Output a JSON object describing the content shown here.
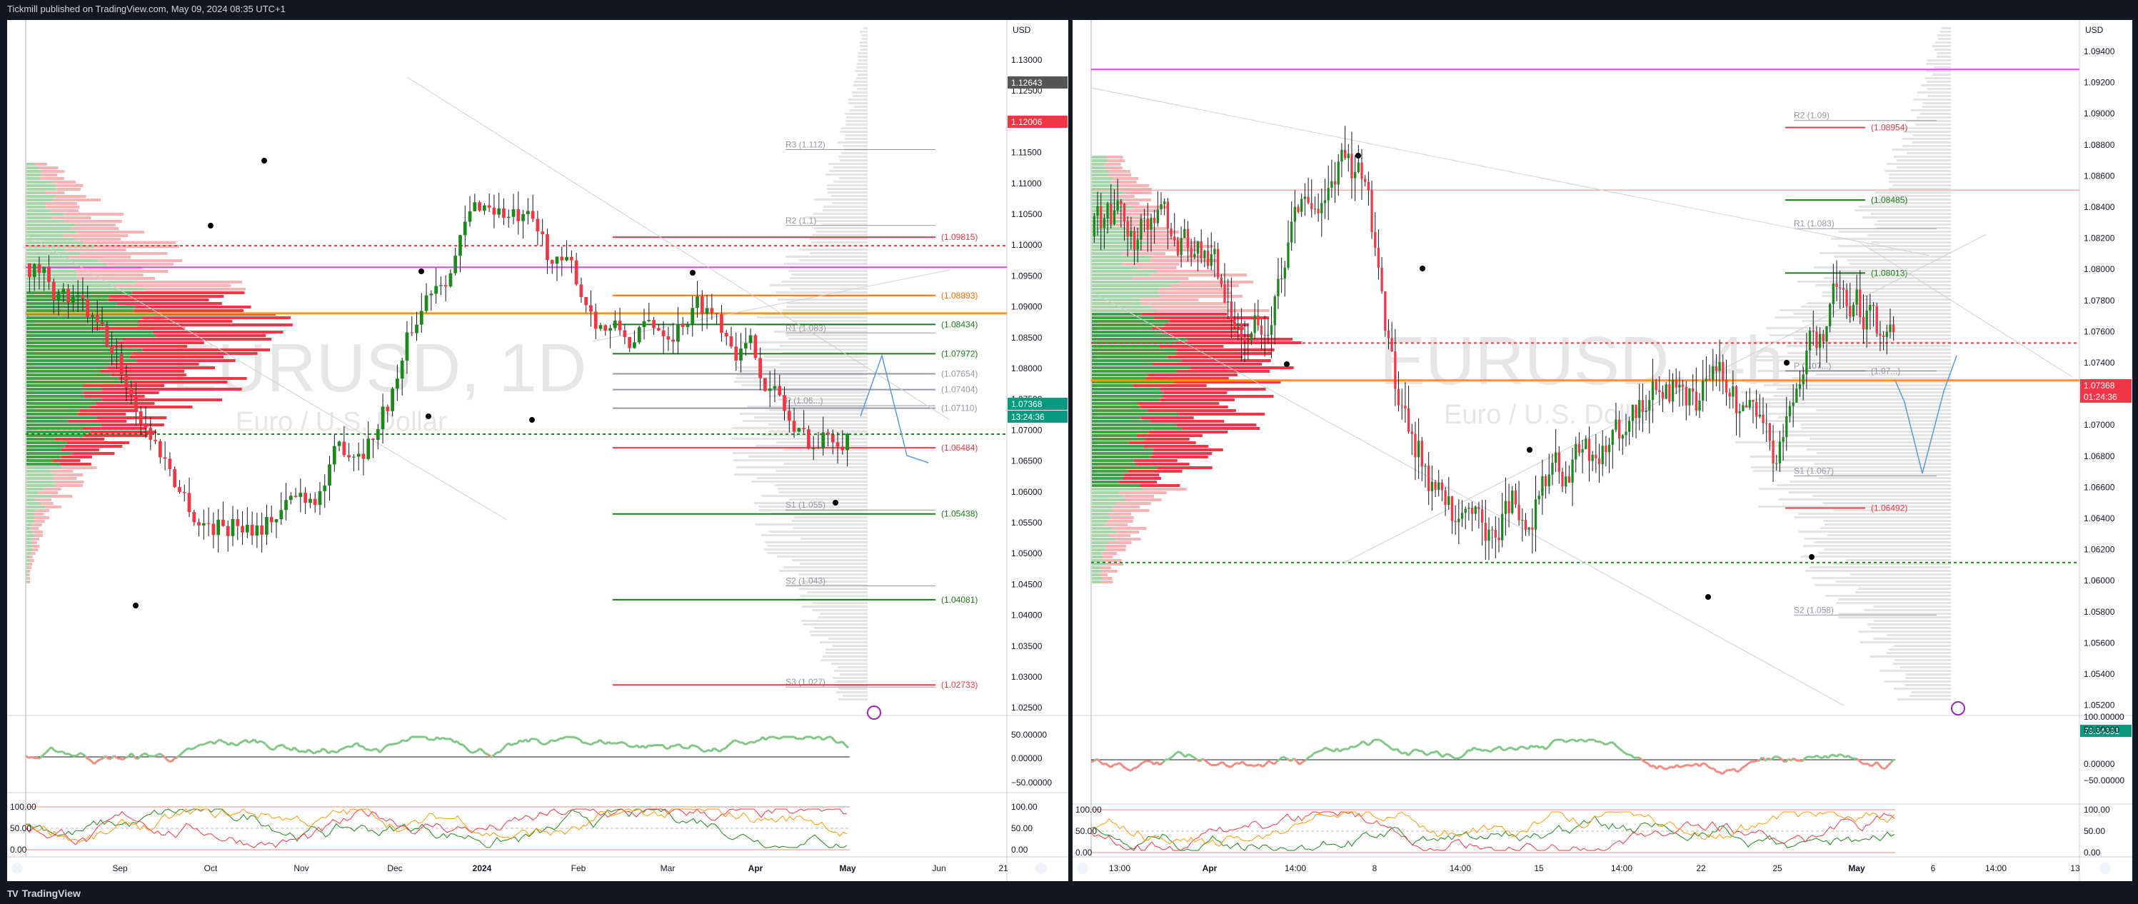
{
  "header": {
    "published": "Tickmill published on TradingView.com, May 09, 2024 08:35 UTC+1"
  },
  "footer": {
    "brand": "TradingView",
    "logo": "TV"
  },
  "left_chart": {
    "symbol_watermark": "EURUSD, 1D",
    "description_watermark": "Euro / U.S. Dollar",
    "currency": "USD",
    "price_axis": [
      "1.13000",
      "1.12500",
      "1.12000",
      "1.11500",
      "1.11000",
      "1.10500",
      "1.10000",
      "1.09500",
      "1.09000",
      "1.08500",
      "1.08000",
      "1.07500",
      "1.07000",
      "1.06500",
      "1.06000",
      "1.05500",
      "1.05000",
      "1.04500",
      "1.04000",
      "1.03500",
      "1.03000",
      "1.02500"
    ],
    "price_tags": [
      {
        "text": "1.12643",
        "bg": "#555555"
      },
      {
        "text": "1.12006",
        "bg": "#f23645"
      },
      {
        "text": "1.07368",
        "bg": "#089981"
      },
      {
        "text": "13:24:36",
        "bg": "#089981"
      }
    ],
    "time_axis": [
      "Sep",
      "Oct",
      "Nov",
      "Dec",
      "2024",
      "Feb",
      "Mar",
      "Apr",
      "May",
      "Jun",
      "21"
    ],
    "pivots": [
      {
        "label": "R3 (1.112)",
        "price": 1.112
      },
      {
        "label": "R2 (1.1)",
        "price": 1.1
      },
      {
        "label": "R1 (1.083)",
        "price": 1.083
      },
      {
        "label": "P (1.06...)",
        "price": 1.0715
      },
      {
        "label": "S1 (1.055)",
        "price": 1.055
      },
      {
        "label": "S2 (1.043)",
        "price": 1.043
      },
      {
        "label": "S3 (1.027)",
        "price": 1.027
      }
    ],
    "levels": [
      {
        "label": "(1.09815)",
        "price": 1.09815,
        "color": "#f23645"
      },
      {
        "label": "(1.08893)",
        "price": 1.08893,
        "color": "#ff6d00"
      },
      {
        "label": "(1.08434)",
        "price": 1.08434,
        "color": "#1b7a1b"
      },
      {
        "label": "(1.07972)",
        "price": 1.07972,
        "color": "#1b7a1b"
      },
      {
        "label": "(1.07654)",
        "price": 1.07654,
        "color": "#9598a1"
      },
      {
        "label": "(1.07404)",
        "price": 1.07404,
        "color": "#9598a1"
      },
      {
        "label": "(1.07110)",
        "price": 1.0711,
        "color": "#9598a1"
      },
      {
        "label": "(1.06484)",
        "price": 1.06484,
        "color": "#f23645"
      },
      {
        "label": "(1.05438)",
        "price": 1.05438,
        "color": "#1b7a1b"
      },
      {
        "label": "(1.04081)",
        "price": 1.04081,
        "color": "#1b7a1b"
      },
      {
        "label": "(1.02733)",
        "price": 1.02733,
        "color": "#f23645"
      }
    ],
    "osc_axis": [
      "50.00000",
      "0.00000",
      "−50.00000"
    ],
    "stoch_axis": [
      "100.00",
      "50.00",
      "0.00"
    ]
  },
  "right_chart": {
    "symbol_watermark": "EURUSD, 4h",
    "description_watermark": "Euro / U.S. Dollar",
    "currency": "USD",
    "price_axis": [
      "1.09400",
      "1.09200",
      "1.09000",
      "1.08800",
      "1.08600",
      "1.08400",
      "1.08200",
      "1.08000",
      "1.07800",
      "1.07600",
      "1.07400",
      "1.07200",
      "1.07000",
      "1.06800",
      "1.06600",
      "1.06400",
      "1.06200",
      "1.06000",
      "1.05800",
      "1.05600",
      "1.05400",
      "1.05200"
    ],
    "price_tags": [
      {
        "text": "1.07368",
        "bg": "#f23645"
      },
      {
        "text": "01:24:36",
        "bg": "#f23645"
      },
      {
        "text": "79.34391",
        "bg": "#089981"
      }
    ],
    "time_axis": [
      "13:00",
      "Apr",
      "14:00",
      "8",
      "14:00",
      "15",
      "14:00",
      "22",
      "25",
      "May",
      "6",
      "14:00",
      "13"
    ],
    "pivots": [
      {
        "label": "R2 (1.09)",
        "price": 1.09
      },
      {
        "label": "R1 (1.083)",
        "price": 1.083
      },
      {
        "label": "P (1.07...)",
        "price": 1.0738
      },
      {
        "label": "S1 (1.067)",
        "price": 1.067
      },
      {
        "label": "S2 (1.058)",
        "price": 1.058
      }
    ],
    "levels": [
      {
        "label": "(1.08954)",
        "price": 1.08954,
        "color": "#f23645"
      },
      {
        "label": "(1.08485)",
        "price": 1.08485,
        "color": "#1b7a1b"
      },
      {
        "label": "(1.08013)",
        "price": 1.08013,
        "color": "#1b7a1b"
      },
      {
        "label": "(1.07...)",
        "price": 1.0738,
        "color": "#9598a1"
      },
      {
        "label": "(1.06492)",
        "price": 1.06492,
        "color": "#f23645"
      }
    ],
    "osc_axis": [
      "100.00000",
      "50.00000",
      "0.00000",
      "−50.00000"
    ],
    "stoch_axis": [
      "100.00",
      "50.00",
      "0.00"
    ]
  }
}
